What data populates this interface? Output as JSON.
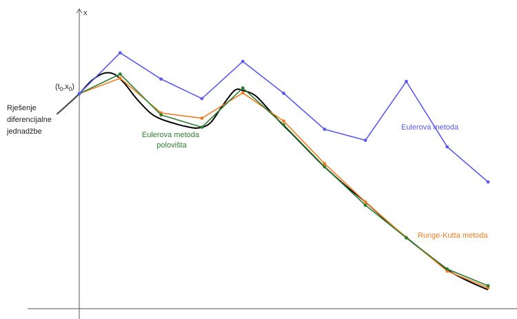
{
  "axis_label_x": "x",
  "initial_point_label": {
    "base": "(t",
    "sub1": "0",
    "mid": ",x",
    "sub2": "0",
    "end": ")"
  },
  "solution_label": [
    "Rješenje",
    "diferencijalne",
    "jednadžbe"
  ],
  "midpoint_label": [
    "Eulerova metoda",
    "polovišta"
  ],
  "euler_label": "Eulerova metoda",
  "rk_label": "Runge-Kutta metoda",
  "colors": {
    "euler": "#5a5af0",
    "midpoint": "#2e7d32",
    "rk": "#ef7d22",
    "exact": "#000000",
    "axis": "#555555",
    "solution_label": "#222222"
  },
  "chart_data": {
    "type": "line",
    "series": [
      {
        "name": "Eulerova metoda",
        "color": "#5a5af0",
        "x": [
          0,
          1,
          2,
          3,
          4,
          5,
          6,
          7,
          8,
          9,
          10
        ],
        "y": [
          0,
          1,
          0.36,
          -0.12,
          0.79,
          0.01,
          -0.87,
          -1.14,
          0.3,
          -1.3,
          -2.16
        ]
      },
      {
        "name": "Eulerova metoda polovišta",
        "color": "#2e7d32",
        "x": [
          0,
          1,
          2,
          3,
          4,
          5,
          6,
          7,
          8,
          9,
          10
        ],
        "y": [
          0,
          0.48,
          -0.52,
          -0.82,
          0.14,
          -0.76,
          -1.79,
          -2.73,
          -3.53,
          -4.29,
          -4.7
        ]
      },
      {
        "name": "Runge-Kutta metoda",
        "color": "#ef7d22",
        "x": [
          0,
          1,
          2,
          3,
          4,
          5,
          6,
          7,
          8,
          9,
          10
        ],
        "y": [
          0,
          0.38,
          -0.47,
          -0.6,
          0.02,
          -0.67,
          -1.71,
          -2.65,
          -3.52,
          -4.34,
          -4.75
        ]
      }
    ],
    "exact_solution_curve": {
      "name": "Rješenje diferencijalne jednadžbe",
      "color": "#000000",
      "t": [
        -0.55,
        -0.3,
        0,
        0.3,
        0.6,
        0.85,
        1.1,
        1.4,
        1.75,
        2.0,
        2.3,
        2.6,
        2.9,
        3.2,
        3.5,
        3.8,
        4.0,
        4.3,
        4.6,
        4.9,
        5.2,
        5.6,
        6.0,
        6.5,
        7.0,
        7.5,
        8.0,
        8.5,
        9.0,
        9.5,
        10.0
      ],
      "x": [
        -0.5,
        -0.28,
        0,
        0.32,
        0.5,
        0.48,
        0.26,
        -0.12,
        -0.48,
        -0.62,
        -0.72,
        -0.8,
        -0.84,
        -0.72,
        -0.3,
        0.08,
        0.08,
        -0.04,
        -0.35,
        -0.68,
        -0.98,
        -1.39,
        -1.79,
        -2.24,
        -2.65,
        -3.1,
        -3.52,
        -3.92,
        -4.31,
        -4.58,
        -4.8
      ]
    }
  }
}
